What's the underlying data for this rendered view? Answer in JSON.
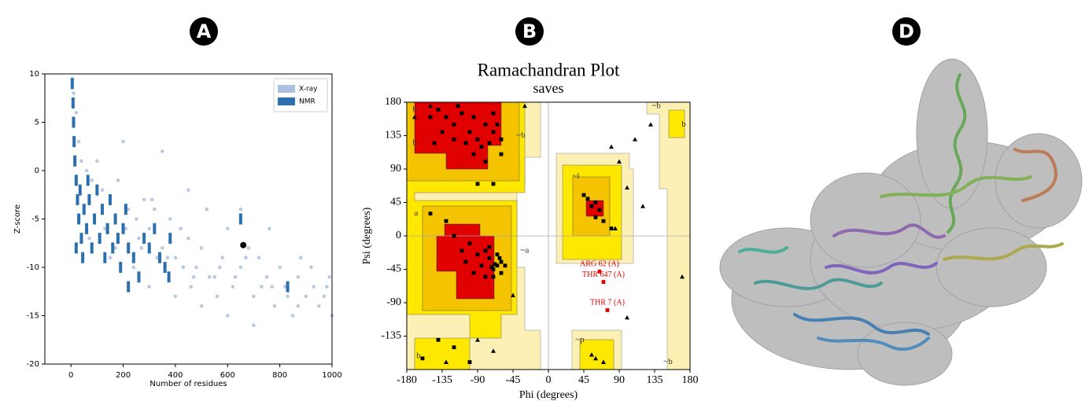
{
  "panels": [
    "A",
    "B",
    "D"
  ],
  "chart_data": [
    {
      "type": "scatter",
      "xlabel": "Number of residues",
      "ylabel": "Z-score",
      "xlim": [
        -100,
        1000
      ],
      "ylim": [
        -20,
        10
      ],
      "xticks": [
        0,
        200,
        400,
        600,
        800,
        1000
      ],
      "yticks": [
        -20,
        -15,
        -10,
        -5,
        0,
        5,
        10
      ],
      "legend": "upper right",
      "series": [
        {
          "name": "X-ray",
          "color": "#aec0dd",
          "marker": "circle",
          "x": [
            5,
            10,
            20,
            30,
            40,
            60,
            80,
            100,
            120,
            150,
            180,
            200,
            220,
            250,
            280,
            300,
            320,
            350,
            380,
            400,
            420,
            450,
            480,
            500,
            520,
            550,
            580,
            600,
            620,
            650,
            680,
            700,
            720,
            750,
            780,
            800,
            820,
            850,
            870,
            900,
            920,
            950,
            980,
            1000,
            240,
            300,
            150,
            400,
            500,
            600,
            700,
            350,
            450,
            650,
            760,
            880,
            560,
            460,
            130,
            70,
            260,
            330,
            430,
            530,
            630,
            730,
            830,
            930,
            170,
            270,
            370,
            470,
            570,
            670,
            770,
            870,
            970,
            990,
            210,
            310
          ],
          "values": [
            9.5,
            8,
            6,
            3,
            1,
            0,
            -1,
            1,
            -2,
            -3,
            -1,
            3,
            -4,
            -5,
            -3,
            -6,
            -4,
            -8,
            -5,
            -9,
            -6,
            -7,
            -10,
            -8,
            -4,
            -11,
            -9,
            -6,
            -12,
            -10,
            -8,
            -13,
            -9,
            -11,
            -14,
            -10,
            -12,
            -15,
            -11,
            -13,
            -10,
            -14,
            -12,
            -15,
            -10,
            -12,
            -9,
            -13,
            -14,
            -15,
            -16,
            2,
            -2,
            -4,
            -6,
            -9,
            -13,
            -12,
            -6,
            -7,
            -7,
            -9,
            -10,
            -11,
            -11,
            -12,
            -13,
            -12,
            -8,
            -8,
            -9,
            -11,
            -10,
            -9,
            -12,
            -14,
            -13,
            -11,
            -6,
            -3
          ]
        },
        {
          "name": "NMR",
          "color": "#2b6fad",
          "marker": "square",
          "x": [
            5,
            8,
            10,
            12,
            15,
            20,
            25,
            30,
            35,
            40,
            50,
            60,
            70,
            80,
            90,
            100,
            110,
            120,
            130,
            140,
            150,
            160,
            170,
            180,
            190,
            200,
            210,
            220,
            240,
            260,
            280,
            300,
            320,
            340,
            360,
            380,
            375,
            20,
            45,
            65,
            650,
            830,
            220
          ],
          "values": [
            9,
            7,
            5,
            3,
            1,
            -1,
            -3,
            -5,
            -2,
            -7,
            -4,
            -6,
            -3,
            -8,
            -5,
            -2,
            -7,
            -4,
            -9,
            -6,
            -3,
            -8,
            -5,
            -7,
            -10,
            -6,
            -4,
            -8,
            -9,
            -11,
            -7,
            -8,
            -6,
            -9,
            -10,
            -7,
            -11,
            -8,
            -9,
            -1,
            -5,
            -12,
            -12
          ]
        }
      ],
      "highlight_point": {
        "x": 660,
        "y": -7.7,
        "color": "#000000"
      }
    },
    {
      "type": "scatter",
      "title": "Ramachandran Plot",
      "subtitle": "saves",
      "xlabel": "Phi (degrees)",
      "ylabel": "Psi (degrees)",
      "xlim": [
        -180,
        180
      ],
      "ylim": [
        -180,
        180
      ],
      "xticks": [
        -180,
        -135,
        -90,
        -45,
        0,
        45,
        90,
        135,
        180
      ],
      "yticks": [
        -135,
        -90,
        -45,
        0,
        45,
        90,
        135,
        180
      ],
      "zero_lines": true,
      "series": [
        {
          "color": "#000000",
          "marker": "square",
          "x": [
            -140,
            -130,
            -120,
            -110,
            -100,
            -90,
            -80,
            -70,
            -75,
            -65,
            -120,
            -135,
            -150,
            -60,
            -85,
            -95,
            -105,
            -115,
            -70,
            -145,
            -80,
            -95,
            -60,
            -70,
            -90,
            -65,
            -60,
            -70,
            -75,
            -80,
            -85,
            -90,
            -100,
            -95,
            -70,
            -65,
            -60,
            -110,
            -120,
            -105,
            -75,
            -55,
            -80,
            -68,
            -72,
            -62,
            -130,
            -150,
            -140,
            -160,
            -100,
            -120,
            55,
            60,
            65,
            50,
            70,
            80,
            45,
            60
          ],
          "values": [
            170,
            160,
            150,
            165,
            140,
            130,
            150,
            140,
            125,
            150,
            130,
            140,
            160,
            130,
            120,
            160,
            125,
            175,
            165,
            125,
            100,
            110,
            110,
            70,
            70,
            -40,
            -35,
            -45,
            -30,
            -20,
            -40,
            -25,
            -10,
            -50,
            -55,
            -25,
            -50,
            -20,
            0,
            -35,
            -15,
            -40,
            -55,
            -38,
            -42,
            -30,
            20,
            30,
            -140,
            -165,
            -170,
            -150,
            40,
            45,
            35,
            50,
            20,
            10,
            55,
            25
          ]
        },
        {
          "color": "#000000",
          "marker": "triangle",
          "x": [
            -30,
            -150,
            80,
            100,
            110,
            130,
            100,
            120,
            85,
            90,
            -170,
            -130,
            -90,
            60,
            70,
            -70,
            55,
            -45,
            170
          ],
          "values": [
            175,
            175,
            120,
            -110,
            130,
            150,
            65,
            40,
            10,
            100,
            160,
            -170,
            -140,
            -165,
            -170,
            -155,
            -160,
            -80,
            -55
          ]
        },
        {
          "color": "#e00000",
          "marker": "square",
          "x": [
            65,
            70,
            75
          ],
          "values": [
            -48,
            -62,
            -100
          ],
          "labels": [
            "ARG 62 (A)",
            "THR 647 (A)",
            "THR 7 (A)"
          ]
        }
      ],
      "region_labels": [
        {
          "text": "b",
          "x": -170,
          "y": 170
        },
        {
          "text": "b",
          "x": -170,
          "y": 125
        },
        {
          "text": "~b",
          "x": -35,
          "y": 135
        },
        {
          "text": "a",
          "x": -168,
          "y": 30
        },
        {
          "text": "~a",
          "x": -30,
          "y": -20
        },
        {
          "text": "~l",
          "x": 35,
          "y": 80
        },
        {
          "text": "~b",
          "x": 137,
          "y": 175
        },
        {
          "text": "b",
          "x": 172,
          "y": 150
        },
        {
          "text": "b",
          "x": -165,
          "y": -162
        },
        {
          "text": "~p",
          "x": 40,
          "y": -140
        },
        {
          "text": "~b",
          "x": 152,
          "y": -170
        }
      ]
    }
  ]
}
